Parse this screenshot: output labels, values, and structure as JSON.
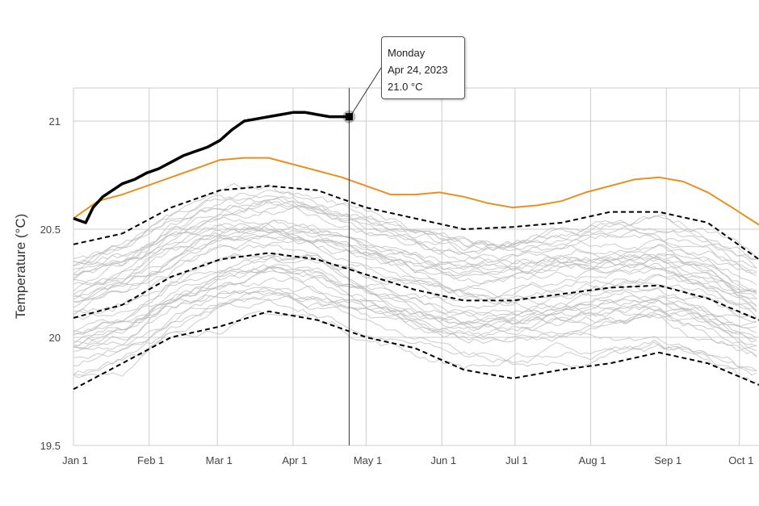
{
  "chart_data": {
    "type": "line",
    "ylabel": "Temperature (°C)",
    "xlabel": "",
    "ylim": [
      19.5,
      21.15
    ],
    "yticks": [
      "19.5",
      "20",
      "20.5",
      "21"
    ],
    "ytick_values": [
      19.5,
      20,
      20.5,
      21
    ],
    "xticks": [
      "Jan 1",
      "Feb 1",
      "Mar 1",
      "Apr 1",
      "May 1",
      "Jun 1",
      "Jul 1",
      "Aug 1",
      "Sep 1",
      "Oct 1"
    ],
    "xtick_days": [
      0,
      31,
      59,
      90,
      120,
      151,
      181,
      212,
      243,
      273
    ],
    "xlim_days": [
      0,
      281
    ],
    "grid": true,
    "series": [
      {
        "key": "current",
        "color": "#000000",
        "style": "solid-thick",
        "days": [
          0,
          5,
          8,
          12,
          16,
          20,
          25,
          30,
          35,
          40,
          45,
          50,
          55,
          60,
          65,
          70,
          75,
          80,
          85,
          90,
          95,
          100,
          105,
          110,
          114
        ],
        "values": [
          20.55,
          20.53,
          20.6,
          20.65,
          20.68,
          20.71,
          20.73,
          20.76,
          20.78,
          20.81,
          20.84,
          20.86,
          20.88,
          20.91,
          20.96,
          21.0,
          21.01,
          21.02,
          21.03,
          21.04,
          21.04,
          21.03,
          21.02,
          21.02,
          21.02
        ]
      },
      {
        "key": "previous-year",
        "color": "#e8901e",
        "style": "solid",
        "days": [
          0,
          10,
          20,
          30,
          40,
          50,
          60,
          70,
          80,
          90,
          100,
          110,
          120,
          130,
          140,
          150,
          160,
          170,
          180,
          190,
          200,
          210,
          220,
          230,
          240,
          250,
          260,
          270,
          281
        ],
        "values": [
          20.55,
          20.63,
          20.66,
          20.7,
          20.74,
          20.78,
          20.82,
          20.83,
          20.83,
          20.8,
          20.77,
          20.74,
          20.7,
          20.66,
          20.66,
          20.67,
          20.65,
          20.62,
          20.6,
          20.61,
          20.63,
          20.67,
          20.7,
          20.73,
          20.74,
          20.72,
          20.67,
          20.6,
          20.52
        ]
      },
      {
        "key": "upper-dashed",
        "color": "#000000",
        "style": "dashed",
        "days": [
          0,
          20,
          40,
          60,
          80,
          100,
          120,
          140,
          160,
          180,
          200,
          220,
          240,
          260,
          281
        ],
        "values": [
          20.43,
          20.48,
          20.6,
          20.68,
          20.7,
          20.68,
          20.6,
          20.55,
          20.5,
          20.51,
          20.53,
          20.58,
          20.58,
          20.53,
          20.36
        ]
      },
      {
        "key": "mean-dashed",
        "color": "#000000",
        "style": "dashed",
        "days": [
          0,
          20,
          40,
          60,
          80,
          100,
          120,
          140,
          160,
          180,
          200,
          220,
          240,
          260,
          281
        ],
        "values": [
          20.09,
          20.15,
          20.28,
          20.36,
          20.39,
          20.36,
          20.29,
          20.22,
          20.17,
          20.17,
          20.2,
          20.23,
          20.24,
          20.18,
          20.08
        ]
      },
      {
        "key": "lower-dashed",
        "color": "#000000",
        "style": "dashed",
        "days": [
          0,
          20,
          40,
          60,
          80,
          100,
          120,
          140,
          160,
          180,
          200,
          220,
          240,
          260,
          281
        ],
        "values": [
          19.76,
          19.88,
          20.0,
          20.05,
          20.12,
          20.08,
          20.0,
          19.95,
          19.85,
          19.81,
          19.85,
          19.88,
          19.93,
          19.88,
          19.78
        ]
      }
    ],
    "background_series_count": 40,
    "background_color": "#bbbbbb",
    "highlight": {
      "day": 113,
      "value": 21.02,
      "weekday": "Monday",
      "date": "Apr 24, 2023",
      "label": "21.0 °C"
    }
  }
}
